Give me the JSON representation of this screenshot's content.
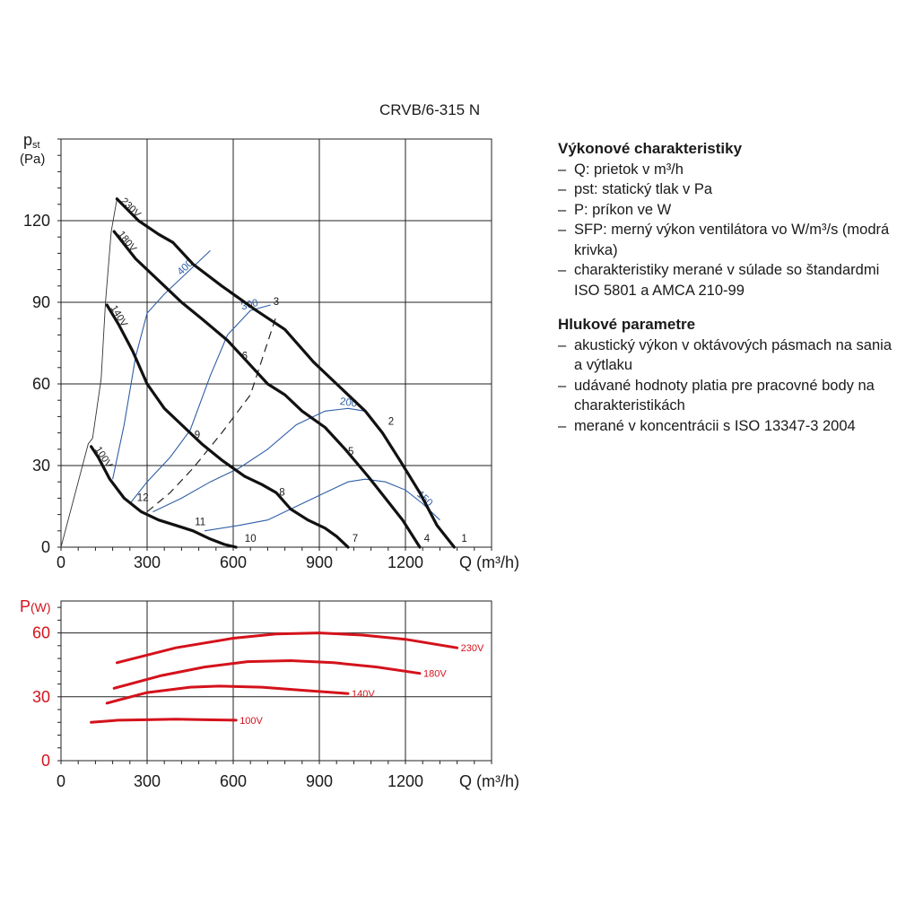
{
  "title": "CRVB/6-315 N",
  "info": {
    "section1_title": "Výkonové charakteristiky",
    "section1_items": [
      "Q: prietok v m³/h",
      "pst: statický tlak v Pa",
      "P: príkon ve W",
      "SFP: merný výkon ventilátora vo W/m³/s (modrá krivka)",
      "charakteristiky merané v súlade so štan­dardmi ISO 5801 a AMCA 210-99"
    ],
    "section2_title": "Hlukové parametre",
    "section2_items": [
      "akustický výkon v oktávových pásmach na sania a výtlaku",
      "udávané hodnoty platia pre pracovné body na charakteristikách",
      "merané v koncentrácii s ISO 13347-3 2004"
    ]
  },
  "colors": {
    "fan": "#111111",
    "sfp": "#2f5fa6",
    "power": "#d4121b",
    "grid": "#222222",
    "power_label": "#d4121b"
  },
  "chart_data": [
    {
      "type": "line",
      "ylabel_main": "p",
      "ylabel_sub": "st",
      "ylabel_unit": "(Pa)",
      "xlabel": "Q (m³/h)",
      "xlim": [
        0,
        1500
      ],
      "ylim": [
        0,
        150
      ],
      "xticks": [
        0,
        300,
        600,
        900,
        1200
      ],
      "yticks": [
        0,
        30,
        60,
        90,
        120
      ],
      "grid": true,
      "fan_curves": [
        {
          "name": "230V",
          "points": [
            [
              195,
              128
            ],
            [
              270,
              120
            ],
            [
              340,
              115
            ],
            [
              390,
              112
            ],
            [
              460,
              104
            ],
            [
              560,
              96
            ],
            [
              680,
              87
            ],
            [
              780,
              80
            ],
            [
              880,
              68
            ],
            [
              960,
              60
            ],
            [
              1060,
              50
            ],
            [
              1120,
              42
            ],
            [
              1180,
              32
            ],
            [
              1250,
              20
            ],
            [
              1310,
              8
            ],
            [
              1370,
              0
            ]
          ]
        },
        {
          "name": "180V",
          "points": [
            [
              185,
              116
            ],
            [
              260,
              106
            ],
            [
              340,
              98
            ],
            [
              420,
              90
            ],
            [
              490,
              84
            ],
            [
              580,
              76
            ],
            [
              650,
              68
            ],
            [
              720,
              60
            ],
            [
              780,
              56
            ],
            [
              840,
              50
            ],
            [
              920,
              44
            ],
            [
              990,
              36
            ],
            [
              1070,
              26
            ],
            [
              1130,
              18
            ],
            [
              1190,
              10
            ],
            [
              1250,
              0
            ]
          ]
        },
        {
          "name": "140V",
          "points": [
            [
              160,
              89
            ],
            [
              200,
              82
            ],
            [
              250,
              72
            ],
            [
              300,
              60
            ],
            [
              360,
              51
            ],
            [
              420,
              45
            ],
            [
              490,
              38
            ],
            [
              560,
              32
            ],
            [
              640,
              26
            ],
            [
              700,
              23
            ],
            [
              750,
              20
            ],
            [
              800,
              14
            ],
            [
              860,
              10
            ],
            [
              920,
              7
            ],
            [
              960,
              4
            ],
            [
              1000,
              0
            ]
          ]
        },
        {
          "name": "100V",
          "points": [
            [
              105,
              37
            ],
            [
              130,
              33
            ],
            [
              170,
              25
            ],
            [
              220,
              18
            ],
            [
              280,
              13
            ],
            [
              340,
              10
            ],
            [
              400,
              8
            ],
            [
              460,
              6
            ],
            [
              520,
              3
            ],
            [
              570,
              1
            ],
            [
              610,
              0
            ]
          ]
        }
      ],
      "operating_line": [
        [
          0,
          0
        ],
        [
          95,
          38
        ],
        [
          110,
          40
        ],
        [
          140,
          62
        ],
        [
          155,
          90
        ],
        [
          175,
          116
        ],
        [
          195,
          128
        ]
      ],
      "dashed_system_curve": [
        [
          300,
          13
        ],
        [
          380,
          20
        ],
        [
          460,
          29
        ],
        [
          560,
          42
        ],
        [
          660,
          56
        ],
        [
          750,
          85
        ]
      ],
      "sfp_curves": [
        {
          "label": "400",
          "points": [
            [
              180,
              25
            ],
            [
              220,
              45
            ],
            [
              260,
              70
            ],
            [
              300,
              86
            ],
            [
              360,
              93
            ],
            [
              440,
              101
            ],
            [
              520,
              109
            ]
          ]
        },
        {
          "label": "300",
          "points": [
            [
              240,
              16
            ],
            [
              300,
              24
            ],
            [
              380,
              33
            ],
            [
              450,
              43
            ],
            [
              520,
              63
            ],
            [
              580,
              78
            ],
            [
              660,
              87
            ],
            [
              730,
              89
            ]
          ]
        },
        {
          "label": "200",
          "points": [
            [
              320,
              13
            ],
            [
              420,
              18
            ],
            [
              520,
              24
            ],
            [
              620,
              29
            ],
            [
              720,
              36
            ],
            [
              820,
              45
            ],
            [
              920,
              50
            ],
            [
              1000,
              51
            ],
            [
              1060,
              50
            ]
          ]
        },
        {
          "label": "150",
          "points": [
            [
              500,
              6
            ],
            [
              620,
              8
            ],
            [
              720,
              10
            ],
            [
              820,
              15
            ],
            [
              920,
              20
            ],
            [
              1000,
              24
            ],
            [
              1060,
              25
            ],
            [
              1130,
              24
            ],
            [
              1200,
              21
            ],
            [
              1260,
              16
            ],
            [
              1320,
              10
            ]
          ]
        }
      ],
      "point_labels": [
        {
          "label": "1",
          "q": 1405,
          "p": 2
        },
        {
          "label": "2",
          "q": 1150,
          "p": 45
        },
        {
          "label": "3",
          "q": 750,
          "p": 89
        },
        {
          "label": "4",
          "q": 1275,
          "p": 2
        },
        {
          "label": "5",
          "q": 1010,
          "p": 34
        },
        {
          "label": "6",
          "q": 640,
          "p": 69
        },
        {
          "label": "7",
          "q": 1025,
          "p": 2
        },
        {
          "label": "8",
          "q": 770,
          "p": 19
        },
        {
          "label": "9",
          "q": 475,
          "p": 40
        },
        {
          "label": "10",
          "q": 660,
          "p": 2
        },
        {
          "label": "11",
          "q": 485,
          "p": 8
        },
        {
          "label": "12",
          "q": 285,
          "p": 17
        }
      ]
    },
    {
      "type": "line",
      "ylabel_main": "P",
      "ylabel_unit": "(W)",
      "xlabel": "Q (m³/h)",
      "xlim": [
        0,
        1500
      ],
      "ylim": [
        0,
        75
      ],
      "xticks": [
        0,
        300,
        600,
        900,
        1200
      ],
      "yticks": [
        0,
        30,
        60
      ],
      "grid": true,
      "series": [
        {
          "name": "230V",
          "points": [
            [
              195,
              46
            ],
            [
              400,
              53
            ],
            [
              600,
              57.5
            ],
            [
              750,
              59.5
            ],
            [
              900,
              60
            ],
            [
              1050,
              59
            ],
            [
              1200,
              57
            ],
            [
              1380,
              53
            ]
          ]
        },
        {
          "name": "180V",
          "points": [
            [
              185,
              34
            ],
            [
              350,
              40
            ],
            [
              500,
              44
            ],
            [
              650,
              46.5
            ],
            [
              800,
              47
            ],
            [
              950,
              46
            ],
            [
              1100,
              44
            ],
            [
              1250,
              41
            ]
          ]
        },
        {
          "name": "140V",
          "points": [
            [
              160,
              27
            ],
            [
              300,
              32
            ],
            [
              450,
              34.5
            ],
            [
              550,
              35
            ],
            [
              700,
              34.5
            ],
            [
              850,
              33
            ],
            [
              1000,
              31.5
            ]
          ]
        },
        {
          "name": "100V",
          "points": [
            [
              105,
              18
            ],
            [
              200,
              19
            ],
            [
              300,
              19.2
            ],
            [
              400,
              19.5
            ],
            [
              500,
              19.2
            ],
            [
              610,
              19
            ]
          ]
        }
      ]
    }
  ]
}
